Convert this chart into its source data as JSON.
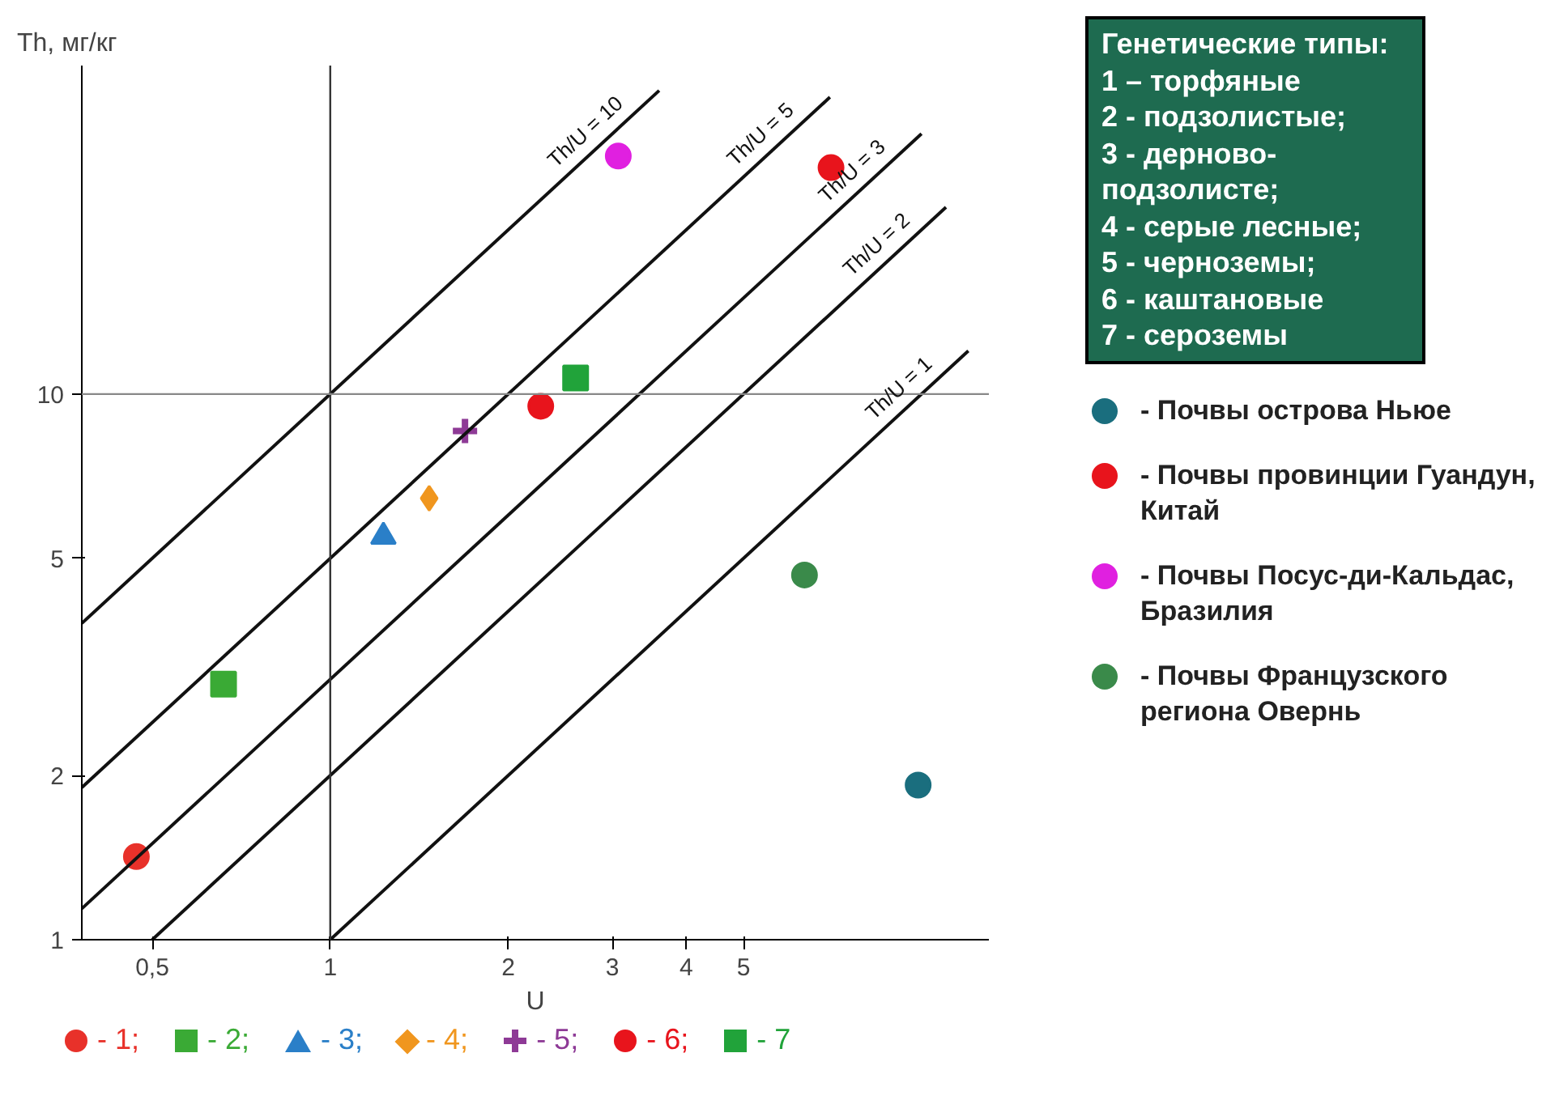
{
  "chart_data": {
    "type": "scatter",
    "xlabel": "U",
    "ylabel": "Th, мг/кг",
    "log": "xy",
    "xlim": [
      0.38,
      13
    ],
    "ylim": [
      1,
      40
    ],
    "xticks": [
      {
        "value": 0.5,
        "label": "0,5"
      },
      1,
      2,
      3,
      4,
      5
    ],
    "yticks": [
      1,
      2,
      5,
      10
    ],
    "grid": false,
    "legend": "bottom",
    "ref_lines": [
      {
        "axis": "x",
        "value": 1,
        "label": null,
        "color": "#333333"
      },
      {
        "axis": "y",
        "value": 10,
        "label": null,
        "color": "#888888"
      }
    ],
    "annotations": [
      "Генетические типы:\n1 – торфяные\n2 - подзолистые;\n3 - дерново-\nподзолисте;\n4 - серые лесные;\n5 - черноземы;\n6 - каштановые\n7 - сероземы"
    ],
    "series": [
      {
        "name": "- 1;",
        "color": "#e8312a",
        "marker": "circle",
        "x": [
          0.47
        ],
        "values": [
          1.42
        ]
      },
      {
        "name": "- 2;",
        "color": "#3aaa35",
        "marker": "square",
        "x": [
          0.66
        ],
        "values": [
          2.94
        ]
      },
      {
        "name": "- 3;",
        "color": "#2a7fc8",
        "marker": "triangle",
        "x": [
          1.23
        ],
        "values": [
          5.48
        ]
      },
      {
        "name": "- 4;",
        "color": "#f0961e",
        "marker": "diamond",
        "x": [
          1.47
        ],
        "values": [
          6.44
        ]
      },
      {
        "name": "- 5;",
        "color": "#8e3a96",
        "marker": "cross",
        "x": [
          1.69
        ],
        "values": [
          8.56
        ]
      },
      {
        "name": "- 6;",
        "color": "#e8141c",
        "marker": "circle",
        "x": [
          2.27
        ],
        "values": [
          9.5
        ]
      },
      {
        "name": "- 7",
        "color": "#21a33a",
        "marker": "square",
        "x": [
          2.6
        ],
        "values": [
          10.7
        ]
      },
      {
        "name": "- Почвы острова Ньюе",
        "color": "#1a6e7e",
        "marker": "circle",
        "x": [
          9.87
        ],
        "values": [
          1.92
        ]
      },
      {
        "name": "- Почвы провинции Гуандун, Китай",
        "color": "#e8141c",
        "marker": "circle",
        "x": [
          7.03
        ],
        "values": [
          26.0
        ]
      },
      {
        "name": "- Почвы Посус-ди-Кальдас, Бразилия",
        "color": "#e020e0",
        "marker": "circle",
        "x": [
          3.07
        ],
        "values": [
          27.3
        ]
      },
      {
        "name": "- Почвы Французского региона Овернь",
        "color": "#3a8a4a",
        "marker": "circle",
        "x": [
          6.34
        ],
        "values": [
          4.66
        ]
      },
      {
        "name": "Th/U = 10",
        "type": "line",
        "color": "#111111",
        "x": [
          0.38,
          3.6
        ],
        "values": [
          3.8,
          36
        ]
      },
      {
        "name": "Th/U = 5",
        "type": "line",
        "color": "#111111",
        "x": [
          0.38,
          7
        ],
        "values": [
          1.9,
          35
        ]
      },
      {
        "name": "Th/U = 3",
        "type": "line",
        "color": "#111111",
        "x": [
          0.38,
          10
        ],
        "values": [
          1.14,
          30
        ]
      },
      {
        "name": "Th/U = 2",
        "type": "line",
        "color": "#111111",
        "x": [
          0.5,
          11
        ],
        "values": [
          1,
          22
        ]
      },
      {
        "name": "Th/U = 1",
        "type": "line",
        "color": "#111111",
        "x": [
          1,
          12
        ],
        "values": [
          1,
          12
        ]
      }
    ]
  }
}
